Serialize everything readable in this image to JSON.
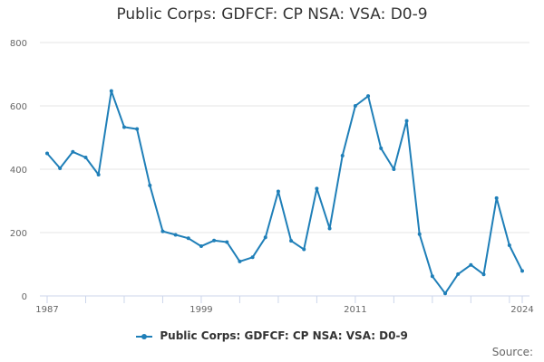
{
  "chart_data": {
    "type": "line",
    "title": "Public Corps: GDFCF: CP NSA: VSA: D0-9",
    "xlabel": "",
    "ylabel": "",
    "ylim": [
      0,
      800
    ],
    "xlim": [
      1987,
      2024
    ],
    "y_ticks": [
      0,
      200,
      400,
      600,
      800
    ],
    "x_ticks": [
      1987,
      1999,
      2011,
      2024
    ],
    "grid": true,
    "legend_position": "bottom",
    "series": [
      {
        "name": "Public Corps: GDFCF: CP NSA: VSA: D0-9",
        "color": "#1f7fb8",
        "x": [
          1987,
          1988,
          1989,
          1990,
          1991,
          1992,
          1993,
          1994,
          1995,
          1996,
          1997,
          1998,
          1999,
          2000,
          2001,
          2002,
          2003,
          2004,
          2005,
          2006,
          2007,
          2008,
          2009,
          2010,
          2011,
          2012,
          2013,
          2014,
          2015,
          2016,
          2017,
          2018,
          2019,
          2020,
          2021,
          2022,
          2023,
          2024
        ],
        "values": [
          450,
          403,
          455,
          437,
          383,
          647,
          533,
          527,
          349,
          204,
          193,
          182,
          157,
          175,
          170,
          109,
          122,
          185,
          330,
          174,
          147,
          339,
          213,
          443,
          600,
          631,
          466,
          400,
          553,
          195,
          62,
          8,
          69,
          98,
          68,
          309,
          160,
          79
        ]
      }
    ]
  },
  "legend": {
    "label": "Public Corps: GDFCF: CP NSA: VSA: D0-9"
  },
  "source": {
    "label": "Source:"
  }
}
